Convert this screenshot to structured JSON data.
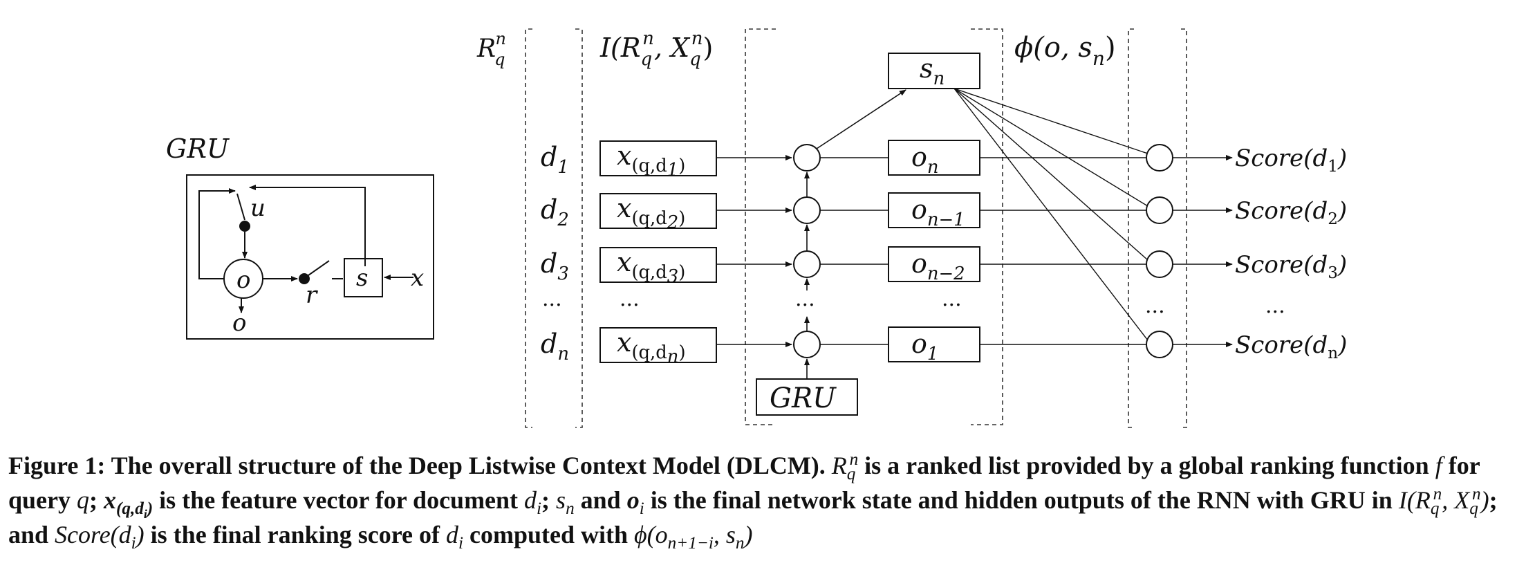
{
  "labels": {
    "rank_list_header_base": "R",
    "rank_list_header_sub": "q",
    "rank_list_header_sup": "n",
    "input_header": "I(R",
    "input_header_q": "q",
    "input_header_n": "n",
    "input_header_mid": ", X",
    "input_header_end": ")",
    "phi_header": "ϕ(o, s",
    "phi_header_sub": "n",
    "phi_header_end": ")",
    "state": "s",
    "state_sub": "n",
    "gru_box": "GRU",
    "gru_inset_title": "GRU",
    "dots": "..."
  },
  "documents": [
    {
      "base": "d",
      "sub": "1"
    },
    {
      "base": "d",
      "sub": "2"
    },
    {
      "base": "d",
      "sub": "3"
    },
    {
      "base": "d",
      "sub": "n"
    }
  ],
  "features": [
    {
      "base": "x",
      "pre": "(q,d",
      "sub": "1",
      "post": ")"
    },
    {
      "base": "x",
      "pre": "(q,d",
      "sub": "2",
      "post": ")"
    },
    {
      "base": "x",
      "pre": "(q,d",
      "sub": "3",
      "post": ")"
    },
    {
      "base": "x",
      "pre": "(q,d",
      "sub": "n",
      "post": ")"
    }
  ],
  "outputs": [
    {
      "base": "o",
      "sub": "n"
    },
    {
      "base": "o",
      "sub": "n−1"
    },
    {
      "base": "o",
      "sub": "n−2"
    },
    {
      "base": "o",
      "sub": "1"
    }
  ],
  "scores": [
    {
      "base": "Score(d",
      "sub": "1",
      "post": ")"
    },
    {
      "base": "Score(d",
      "sub": "2",
      "post": ")"
    },
    {
      "base": "Score(d",
      "sub": "3",
      "post": ")"
    },
    {
      "base": "Score(d",
      "sub": "n",
      "post": ")"
    }
  ],
  "gru_cell": {
    "update_gate": "u",
    "reset_gate": "r",
    "state": "s",
    "input": "x",
    "output_node": "o",
    "output_label": "o"
  },
  "caption": {
    "lead": "Figure 1: The overall structure of the Deep Listwise Context Model (DLCM).",
    "r": "R",
    "q": "q",
    "n": "n",
    "t1": " is a ranked list provided by a global ranking function ",
    "f": "f",
    "t2": " for query ",
    "query": "q",
    "t3": "; ",
    "x": "x",
    "xsub": "(q,d",
    "xsub_i": "i",
    "xsub_end": ")",
    "t4": " is the feature vector for document ",
    "d": "d",
    "i": "i",
    "t5": "; ",
    "s": "s",
    "t6": " and ",
    "o": "o",
    "t7": " is the final network state and hidden outputs of the RNN with GRU in ",
    "I": "I(R",
    "comma_x": ", X",
    "close": ")",
    "t8": "; and ",
    "score": "Score(d",
    "t9": " is the final ranking score of ",
    "t10": " computed with ",
    "phi": "ϕ(o",
    "phi_sub": "n+1−i",
    "phi_mid": ", s",
    "phi_end": ")"
  }
}
